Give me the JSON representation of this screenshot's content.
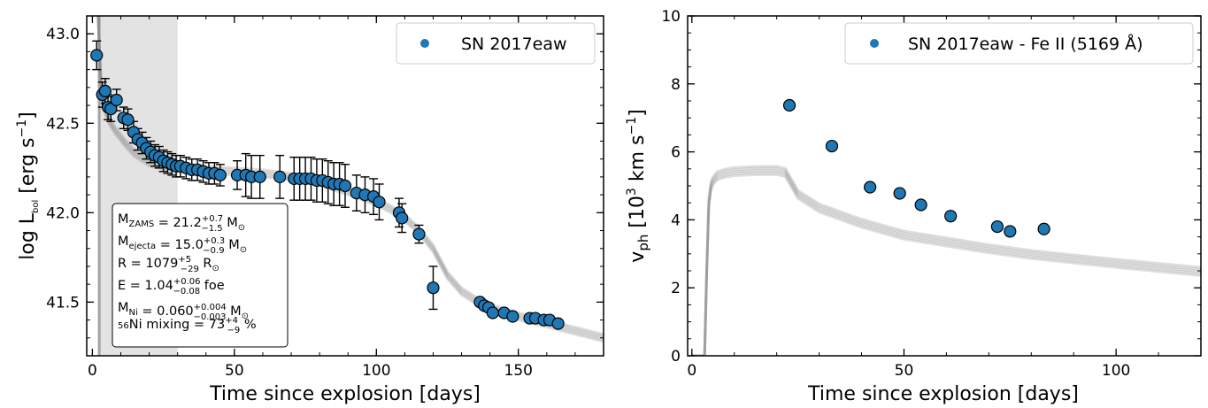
{
  "chart_data": [
    {
      "type": "scatter",
      "xlabel": "Time since explosion [days]",
      "ylabel": "log L",
      "ylabel_sub": "bol",
      "ylabel_unit": "[erg s",
      "ylabel_exp": "−1",
      "ylabel_close": "]",
      "xlim": [
        -2,
        180
      ],
      "ylim": [
        41.2,
        43.1
      ],
      "xticks": [
        0,
        50,
        100,
        150
      ],
      "yticks": [
        41.5,
        42.0,
        42.5,
        43.0
      ],
      "ytick_labels": [
        "41.5",
        "42.0",
        "42.5",
        "43.0"
      ],
      "grid": false,
      "legend": "top-right",
      "shaded_region": [
        2,
        30
      ],
      "series": [
        {
          "name": "SN 2017eaw",
          "color": "#1f77b4",
          "x": [
            1.5,
            3.5,
            4.5,
            5.5,
            6.5,
            8.5,
            11,
            12.5,
            14.5,
            16,
            17.5,
            19,
            20.5,
            22,
            23.5,
            25,
            26.5,
            28,
            29.5,
            31,
            33,
            35,
            37,
            39,
            41,
            43,
            45,
            51,
            54,
            56,
            59,
            66,
            71,
            73,
            75,
            77,
            79,
            81,
            83,
            85,
            87,
            89,
            93,
            96,
            99,
            101,
            108,
            109,
            115,
            120,
            136.5,
            138,
            139.5,
            141,
            145,
            148,
            154,
            156,
            159,
            161,
            164
          ],
          "y": [
            42.88,
            42.66,
            42.68,
            42.59,
            42.58,
            42.63,
            42.53,
            42.52,
            42.45,
            42.41,
            42.39,
            42.36,
            42.34,
            42.32,
            42.31,
            42.29,
            42.28,
            42.27,
            42.26,
            42.26,
            42.25,
            42.24,
            42.24,
            42.23,
            42.22,
            42.22,
            42.21,
            42.21,
            42.21,
            42.2,
            42.2,
            42.2,
            42.19,
            42.19,
            42.19,
            42.19,
            42.18,
            42.18,
            42.17,
            42.16,
            42.16,
            42.15,
            42.11,
            42.1,
            42.09,
            42.06,
            42.0,
            41.97,
            41.88,
            41.58,
            41.5,
            41.48,
            41.47,
            41.44,
            41.44,
            41.42,
            41.41,
            41.41,
            41.4,
            41.4,
            41.38
          ],
          "yerr": [
            0.08,
            0.07,
            0.07,
            0.07,
            0.07,
            0.06,
            0.06,
            0.06,
            0.06,
            0.06,
            0.06,
            0.06,
            0.06,
            0.06,
            0.06,
            0.06,
            0.06,
            0.06,
            0.06,
            0.06,
            0.06,
            0.06,
            0.06,
            0.06,
            0.06,
            0.06,
            0.06,
            0.08,
            0.12,
            0.12,
            0.12,
            0.12,
            0.12,
            0.12,
            0.12,
            0.12,
            0.12,
            0.12,
            0.12,
            0.12,
            0.12,
            0.12,
            0.1,
            0.1,
            0.1,
            0.1,
            0.08,
            0.08,
            0.05,
            0.12,
            0.0,
            0.0,
            0.0,
            0.0,
            0.0,
            0.0,
            0.0,
            0.0,
            0.0,
            0.0,
            0.0
          ]
        }
      ],
      "model_curves": {
        "color": "#888888",
        "x": [
          2,
          2.5,
          3,
          3.5,
          4,
          5,
          6,
          8,
          10,
          12,
          15,
          20,
          25,
          30,
          40,
          50,
          60,
          70,
          80,
          90,
          100,
          105,
          110,
          115,
          120,
          125,
          130,
          135,
          140,
          150,
          160,
          170,
          180
        ],
        "y": [
          43.1,
          42.9,
          42.75,
          42.65,
          42.6,
          42.55,
          42.51,
          42.46,
          42.42,
          42.38,
          42.33,
          42.28,
          42.26,
          42.25,
          42.24,
          42.23,
          42.22,
          42.2,
          42.17,
          42.12,
          42.06,
          42.02,
          41.97,
          41.9,
          41.8,
          41.65,
          41.56,
          41.51,
          41.47,
          41.42,
          41.38,
          41.34,
          41.3
        ]
      },
      "annotations": [
        {
          "pre": "M",
          "sub": "ZAMS",
          "mid": " = 21.2",
          "up": "+0.7",
          "lo": "−1.5",
          "post": " M",
          "post_sub": "⊙"
        },
        {
          "pre": "M",
          "sub": "ejecta",
          "mid": " = 15.0",
          "up": "+0.3",
          "lo": "−0.9",
          "post": " M",
          "post_sub": "⊙"
        },
        {
          "pre": "R",
          "sub": "",
          "mid": " = 1079",
          "up": "+5",
          "lo": "−29",
          "post": " R",
          "post_sub": "⊙"
        },
        {
          "pre": "E",
          "sub": "",
          "mid": " = 1.04",
          "up": "+0.06",
          "lo": "−0.08",
          "post": " foe",
          "post_sub": ""
        },
        {
          "pre": "M",
          "sub": "Ni",
          "mid": " = 0.060",
          "up": "+0.004",
          "lo": "−0.003",
          "post": " M",
          "post_sub": "⊙"
        },
        {
          "pre": "",
          "presup": "56",
          "sub": "",
          "mid": "Ni mixing = 73",
          "up": "+4",
          "lo": "−9",
          "post": " %",
          "post_sub": ""
        }
      ]
    },
    {
      "type": "scatter",
      "xlabel": "Time since explosion [days]",
      "ylabel": "v",
      "ylabel_sub": "ph",
      "ylabel_unit": "[10",
      "ylabel_exp": "3",
      "ylabel_close": " km s",
      "ylabel_exp2": "−1",
      "ylabel_end": "]",
      "xlim": [
        -1,
        120
      ],
      "ylim": [
        0,
        10
      ],
      "xticks": [
        0,
        50,
        100
      ],
      "yticks": [
        0,
        2,
        4,
        6,
        8,
        10
      ],
      "grid": false,
      "legend": "top-right",
      "series": [
        {
          "name": "SN 2017eaw - Fe II (5169 Å)",
          "color": "#1f77b4",
          "x": [
            23,
            33,
            42,
            49,
            54,
            61,
            72,
            75,
            83
          ],
          "y": [
            7.37,
            6.17,
            4.96,
            4.78,
            4.44,
            4.11,
            3.8,
            3.66,
            3.73
          ]
        }
      ],
      "model_curves": {
        "color": "#888888",
        "x": [
          0,
          2,
          3,
          3.5,
          4,
          4.5,
          5,
          6,
          8,
          10,
          15,
          20,
          22,
          25,
          30,
          40,
          50,
          60,
          70,
          80,
          90,
          100,
          110,
          120
        ],
        "y": [
          0,
          0,
          0,
          2.5,
          4.5,
          5.0,
          5.15,
          5.3,
          5.38,
          5.42,
          5.45,
          5.45,
          5.4,
          4.75,
          4.35,
          3.9,
          3.55,
          3.35,
          3.15,
          2.98,
          2.85,
          2.72,
          2.6,
          2.48
        ]
      }
    }
  ]
}
